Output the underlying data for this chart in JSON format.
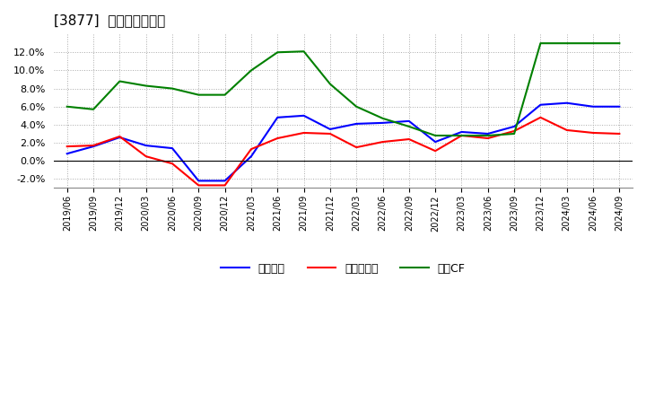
{
  "title": "[3877]  マージンの推移",
  "x_labels": [
    "2019/06",
    "2019/09",
    "2019/12",
    "2020/03",
    "2020/06",
    "2020/09",
    "2020/12",
    "2021/03",
    "2021/06",
    "2021/09",
    "2021/12",
    "2022/03",
    "2022/06",
    "2022/09",
    "2022/12",
    "2023/03",
    "2023/06",
    "2023/09",
    "2023/12",
    "2024/03",
    "2024/06",
    "2024/09"
  ],
  "series": {
    "経常利益": {
      "color": "#0000ff",
      "values": [
        0.008,
        0.016,
        0.026,
        0.017,
        0.014,
        -0.022,
        -0.022,
        0.005,
        0.048,
        0.05,
        0.035,
        0.041,
        0.042,
        0.044,
        0.021,
        0.032,
        0.03,
        0.038,
        0.062,
        0.064,
        0.06,
        0.06
      ]
    },
    "当期純利益": {
      "color": "#ff0000",
      "values": [
        0.016,
        0.017,
        0.027,
        0.005,
        -0.003,
        -0.027,
        -0.027,
        0.013,
        0.025,
        0.031,
        0.03,
        0.015,
        0.021,
        0.024,
        0.011,
        0.028,
        0.025,
        0.033,
        0.048,
        0.034,
        0.031,
        0.03
      ]
    },
    "営業CF": {
      "color": "#008000",
      "values": [
        0.06,
        0.057,
        0.088,
        0.083,
        0.08,
        0.073,
        0.073,
        0.1,
        0.12,
        0.121,
        0.085,
        0.06,
        0.047,
        0.038,
        0.028,
        0.028,
        0.028,
        0.03,
        0.13,
        0.13,
        0.13,
        0.13
      ]
    }
  },
  "ylim": [
    -0.03,
    0.14
  ],
  "yticks": [
    -0.02,
    0.0,
    0.02,
    0.04,
    0.06,
    0.08,
    0.1,
    0.12
  ],
  "bg_color": "#ffffff",
  "grid_color": "#aaaaaa",
  "legend_labels": [
    "経常利益",
    "当期純利益",
    "営業CF"
  ]
}
